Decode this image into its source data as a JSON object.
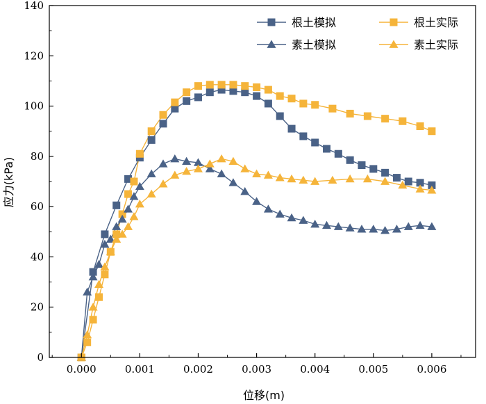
{
  "chart_data": {
    "type": "line",
    "title": "",
    "xlabel": "位移(m)",
    "ylabel": "应力(kPa)",
    "xlim": [
      -0.00055,
      0.00675
    ],
    "ylim": [
      0,
      140
    ],
    "xticks": [
      0.0,
      0.001,
      0.002,
      0.003,
      0.004,
      0.005,
      0.006
    ],
    "xtick_labels": [
      "0.000",
      "0.001",
      "0.002",
      "0.003",
      "0.004",
      "0.005",
      "0.006"
    ],
    "yticks": [
      0,
      20,
      40,
      60,
      80,
      100,
      120,
      140
    ],
    "ytick_labels": [
      "0",
      "20",
      "40",
      "60",
      "80",
      "100",
      "120",
      "140"
    ],
    "grid": false,
    "legend_position": "top-right",
    "series": [
      {
        "name": "根土模拟",
        "color": "#4a6287",
        "marker": "square",
        "x": [
          0.0,
          0.0002,
          0.0004,
          0.0006,
          0.0008,
          0.001,
          0.0012,
          0.0014,
          0.0016,
          0.0018,
          0.002,
          0.0022,
          0.0024,
          0.0026,
          0.0028,
          0.003,
          0.0032,
          0.0034,
          0.0036,
          0.0038,
          0.004,
          0.0042,
          0.0044,
          0.0046,
          0.0048,
          0.005,
          0.0052,
          0.0054,
          0.0056,
          0.0058,
          0.006
        ],
        "y": [
          0,
          34,
          49,
          60.5,
          71,
          79.5,
          86.5,
          93,
          99,
          102,
          103.5,
          105.5,
          106.5,
          106,
          105.5,
          104,
          101,
          96,
          91,
          88,
          85.5,
          83,
          81,
          78.5,
          76.5,
          75,
          73.5,
          71.5,
          70,
          69.5,
          68.5
        ]
      },
      {
        "name": "根土实际",
        "color": "#f5b43a",
        "marker": "square",
        "x": [
          0.0,
          0.0001,
          0.0002,
          0.0003,
          0.0004,
          0.0005,
          0.0006,
          0.0007,
          0.0008,
          0.0009,
          0.001,
          0.0012,
          0.0014,
          0.0016,
          0.0018,
          0.002,
          0.0022,
          0.0024,
          0.0026,
          0.0028,
          0.003,
          0.0032,
          0.0034,
          0.0036,
          0.0038,
          0.004,
          0.0043,
          0.0046,
          0.0049,
          0.0052,
          0.0055,
          0.0058,
          0.006
        ],
        "y": [
          0,
          6,
          15,
          24,
          33,
          42,
          49,
          57,
          65,
          70,
          81,
          90,
          96.5,
          101.5,
          105.5,
          108,
          108.5,
          108.5,
          108.5,
          108,
          107.5,
          106.5,
          104,
          103,
          101,
          100.5,
          99,
          97,
          96,
          95,
          94,
          92,
          90
        ]
      },
      {
        "name": "素土模拟",
        "color": "#4a6287",
        "marker": "triangle",
        "x": [
          0.0,
          0.0001,
          0.0002,
          0.0003,
          0.0004,
          0.0005,
          0.0006,
          0.0007,
          0.0008,
          0.0009,
          0.001,
          0.0012,
          0.0014,
          0.0016,
          0.0018,
          0.002,
          0.0022,
          0.0024,
          0.0026,
          0.0028,
          0.003,
          0.0032,
          0.0034,
          0.0036,
          0.0038,
          0.004,
          0.0042,
          0.0044,
          0.0046,
          0.0048,
          0.005,
          0.0052,
          0.0054,
          0.0056,
          0.0058,
          0.006
        ],
        "y": [
          0,
          26,
          32,
          37,
          45,
          47,
          52,
          55,
          59,
          64,
          68,
          73,
          77,
          79,
          78,
          77.5,
          75,
          73,
          69.5,
          66,
          62,
          59,
          57,
          55.5,
          54.5,
          53,
          52.5,
          52,
          51.5,
          51,
          51,
          50.5,
          51,
          52,
          52.5,
          52
        ]
      },
      {
        "name": "素土实际",
        "color": "#f5b43a",
        "marker": "triangle",
        "x": [
          0.0,
          0.0001,
          0.0002,
          0.0003,
          0.0004,
          0.0005,
          0.0006,
          0.0007,
          0.0008,
          0.0009,
          0.001,
          0.0012,
          0.0014,
          0.0016,
          0.0018,
          0.002,
          0.0022,
          0.0024,
          0.0026,
          0.0028,
          0.003,
          0.0032,
          0.0034,
          0.0036,
          0.0038,
          0.004,
          0.0043,
          0.0046,
          0.0049,
          0.0052,
          0.0055,
          0.0058,
          0.006
        ],
        "y": [
          0,
          9,
          20,
          29,
          36,
          42,
          47,
          49,
          52,
          56,
          61,
          65,
          69,
          72.5,
          74,
          75,
          77,
          79,
          78,
          75,
          73,
          72.5,
          71.5,
          71,
          70.5,
          70,
          70.5,
          71,
          71,
          70,
          68.5,
          67,
          66.5
        ]
      }
    ]
  }
}
